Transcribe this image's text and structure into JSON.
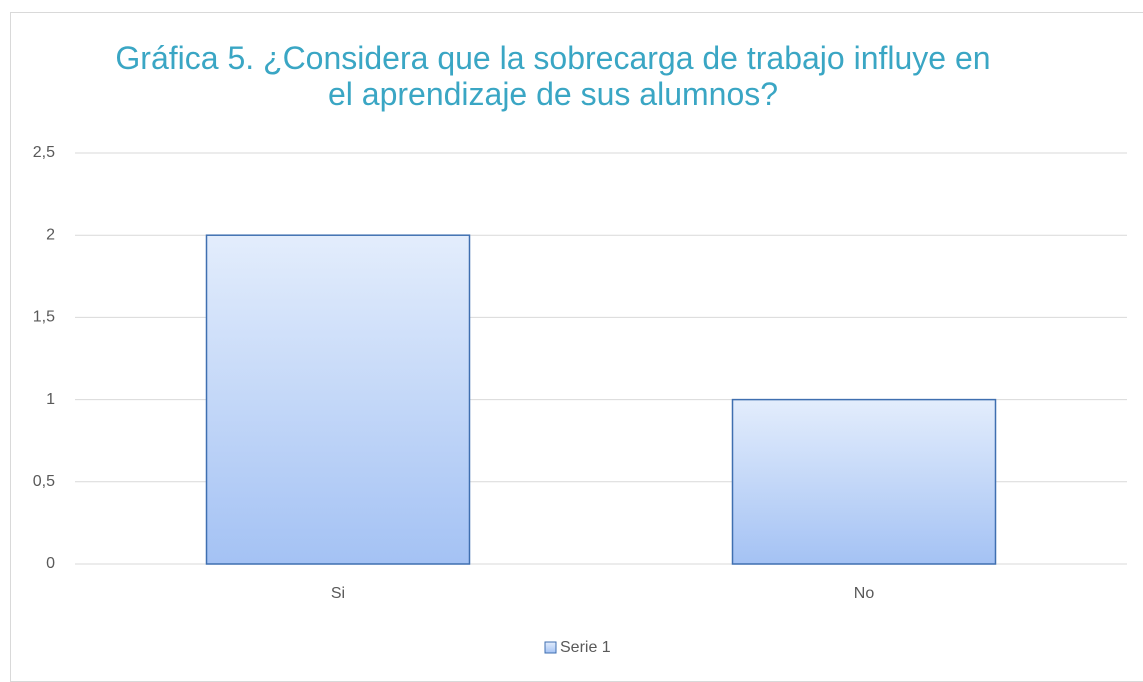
{
  "chart_data": {
    "type": "bar",
    "title": "Gráfica 5. ¿Considera que la sobrecarga de trabajo influye en el aprendizaje de sus alumnos?",
    "categories": [
      "Si",
      "No"
    ],
    "series": [
      {
        "name": "Serie 1",
        "color": "#a4c2f4",
        "values": [
          2,
          1
        ]
      }
    ],
    "ylim": [
      0,
      2.5
    ],
    "yticks": [
      0,
      {
        "value": 0.5,
        "label": "0,5"
      },
      1,
      {
        "value": 1.5,
        "label": "1,5"
      },
      2,
      {
        "value": 2.5,
        "label": "2,5"
      }
    ],
    "grid": true,
    "legend": "bottom"
  }
}
